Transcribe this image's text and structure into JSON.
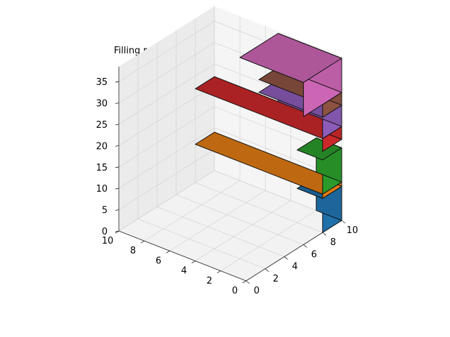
{
  "chart_data": {
    "type": "3d-bar",
    "title": "Filling ratio: 0.11",
    "xlabel": "",
    "ylabel": "",
    "zlabel": "",
    "xlim": [
      0,
      10
    ],
    "ylim": [
      0,
      10
    ],
    "zlim": [
      0,
      35
    ],
    "xticks": [
      "0",
      "2",
      "4",
      "6",
      "8",
      "10"
    ],
    "yticks": [
      "0",
      "2",
      "4",
      "6",
      "8",
      "10"
    ],
    "zticks": [
      "0",
      "5",
      "10",
      "15",
      "20",
      "25",
      "30",
      "35"
    ],
    "grid": true,
    "boxes": [
      {
        "name": "blue",
        "x": [
          8,
          10
        ],
        "y": [
          0,
          2
        ],
        "z": [
          0,
          8
        ],
        "color": "#1f6fa8"
      },
      {
        "name": "orange",
        "x": [
          8,
          10
        ],
        "y": [
          0,
          10
        ],
        "z": [
          8,
          9
        ],
        "color": "#e07b14"
      },
      {
        "name": "green",
        "x": [
          8,
          10
        ],
        "y": [
          0,
          2
        ],
        "z": [
          9,
          17
        ],
        "color": "#2a9a2a"
      },
      {
        "name": "red",
        "x": [
          8,
          10
        ],
        "y": [
          0,
          10
        ],
        "z": [
          19,
          22
        ],
        "color": "#c8282a"
      },
      {
        "name": "purple",
        "x": [
          8,
          10
        ],
        "y": [
          0,
          5
        ],
        "z": [
          22,
          27
        ],
        "color": "#8c5cb8"
      },
      {
        "name": "brown",
        "x": [
          8,
          10
        ],
        "y": [
          0,
          5
        ],
        "z": [
          27,
          30
        ],
        "color": "#8c5242"
      },
      {
        "name": "pink",
        "x": [
          6,
          10
        ],
        "y": [
          0,
          5
        ],
        "z": [
          30,
          38
        ],
        "color": "#cc66b4"
      }
    ]
  }
}
